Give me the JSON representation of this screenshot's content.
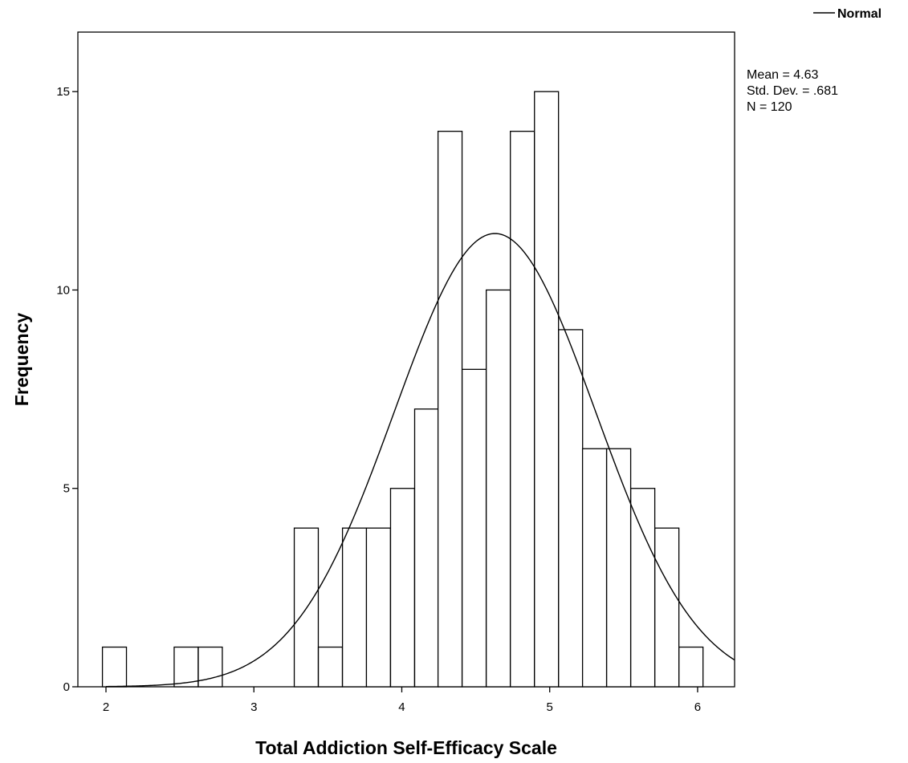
{
  "chart_data": {
    "type": "bar",
    "subtype": "histogram",
    "xlabel": "Total Addiction Self-Efficacy Scale",
    "ylabel": "Frequency",
    "xlim": [
      1.81,
      6.25
    ],
    "ylim": [
      0,
      16.5
    ],
    "x_ticks": [
      2,
      3,
      4,
      5,
      6
    ],
    "y_ticks": [
      0,
      5,
      10,
      15
    ],
    "bin_width": 0.1625,
    "bins": [
      {
        "start": 1.976,
        "count": 1
      },
      {
        "start": 2.461,
        "count": 1
      },
      {
        "start": 2.624,
        "count": 1
      },
      {
        "start": 3.273,
        "count": 4
      },
      {
        "start": 3.436,
        "count": 1
      },
      {
        "start": 3.599,
        "count": 4
      },
      {
        "start": 3.761,
        "count": 4
      },
      {
        "start": 3.924,
        "count": 5
      },
      {
        "start": 4.087,
        "count": 7
      },
      {
        "start": 4.245,
        "count": 14
      },
      {
        "start": 4.408,
        "count": 8
      },
      {
        "start": 4.571,
        "count": 10
      },
      {
        "start": 4.734,
        "count": 14
      },
      {
        "start": 4.897,
        "count": 15
      },
      {
        "start": 5.06,
        "count": 9
      },
      {
        "start": 5.222,
        "count": 6
      },
      {
        "start": 5.385,
        "count": 6
      },
      {
        "start": 5.548,
        "count": 5
      },
      {
        "start": 5.711,
        "count": 4
      },
      {
        "start": 5.874,
        "count": 1
      }
    ],
    "normal_curve": {
      "mean": 4.63,
      "sd": 0.681,
      "n": 120
    },
    "legend": {
      "entries": [
        "Normal"
      ],
      "position": "top-right"
    },
    "stats": [
      "Mean = 4.63",
      "Std. Dev. = .681",
      "N = 120"
    ],
    "grid": false
  }
}
